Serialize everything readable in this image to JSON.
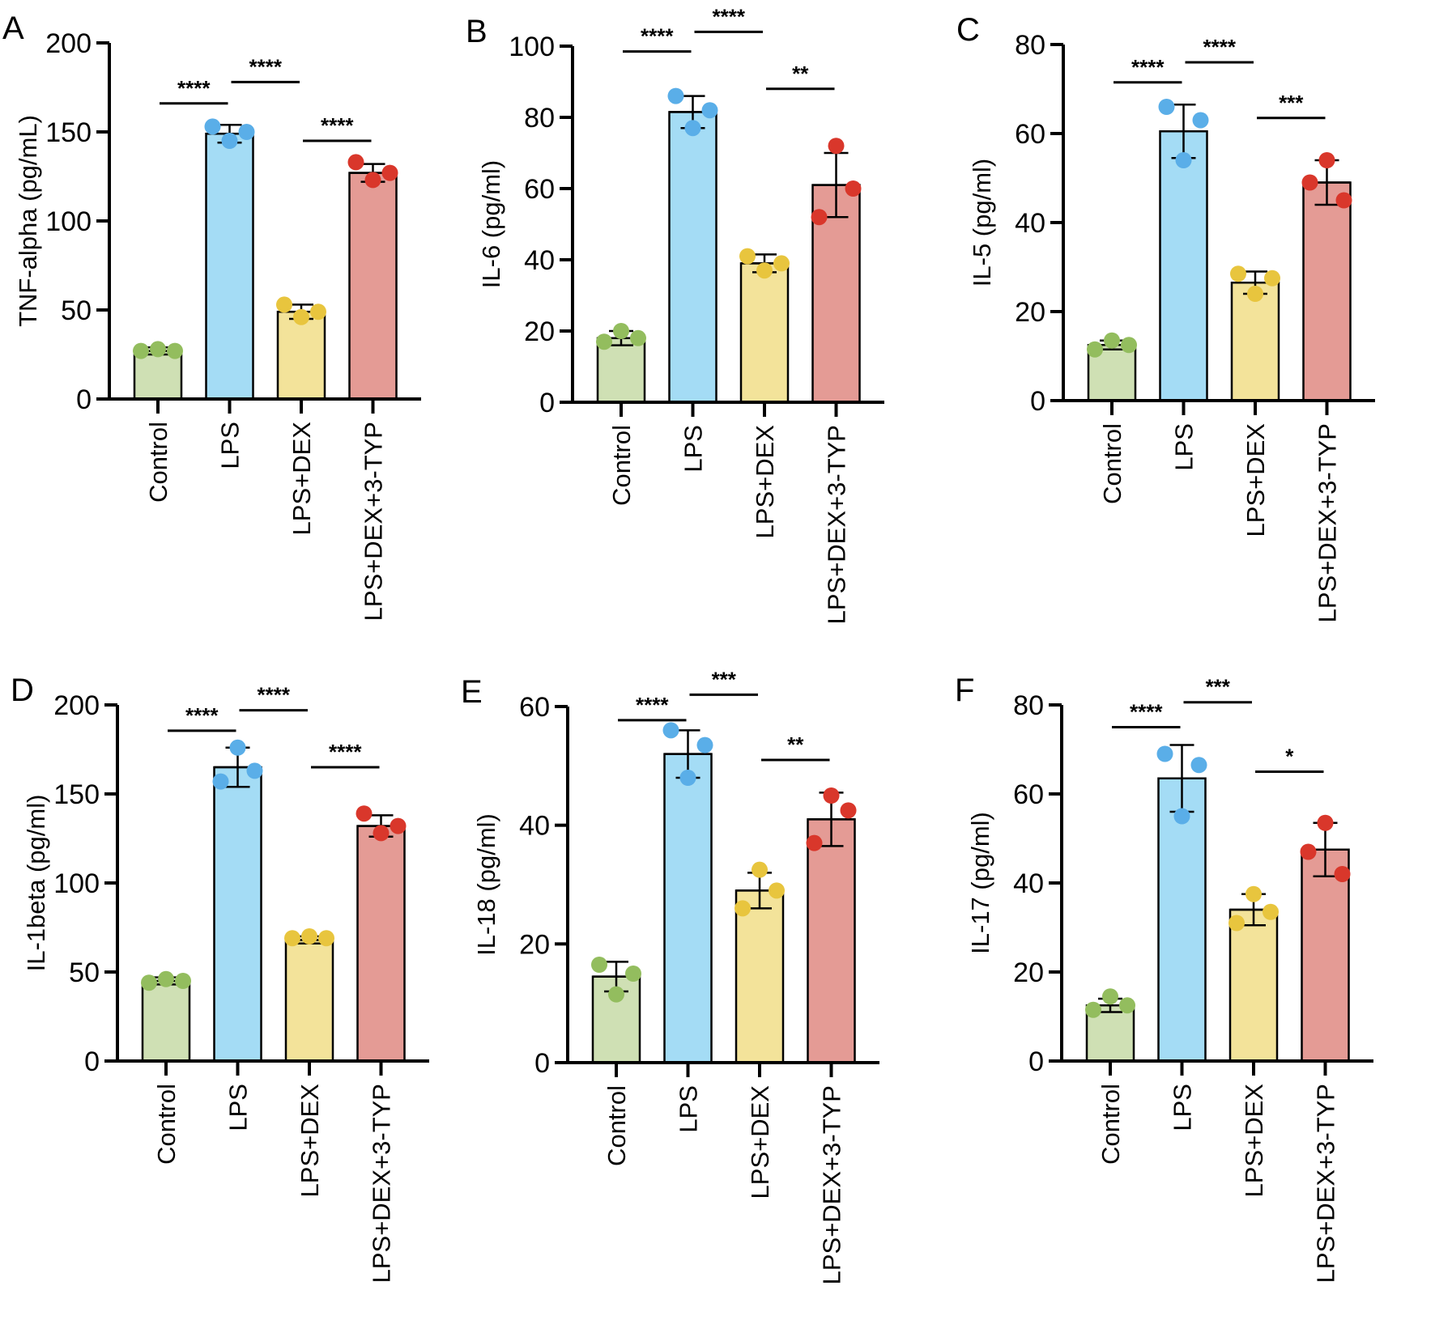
{
  "chart_data": [
    {
      "type": "bar",
      "panel": "A",
      "ylabel": "TNF-alpha (pg/mL)",
      "ylim": [
        0,
        200
      ],
      "yticks": [
        0,
        50,
        100,
        150,
        200
      ],
      "categories": [
        "Control",
        "LPS",
        "LPS+DEX",
        "LPS+DEX+3-TYP"
      ],
      "means": [
        27,
        149,
        49,
        127
      ],
      "errors": [
        2,
        5,
        4,
        5
      ],
      "points": [
        [
          27,
          28,
          27
        ],
        [
          153,
          145,
          150
        ],
        [
          53,
          46,
          49
        ],
        [
          133,
          123,
          127
        ]
      ],
      "significance": [
        {
          "from": 0,
          "to": 1,
          "label": "****",
          "y": 166
        },
        {
          "from": 1,
          "to": 2,
          "label": "****",
          "y": 178
        },
        {
          "from": 2,
          "to": 3,
          "label": "****",
          "y": 145
        }
      ]
    },
    {
      "type": "bar",
      "panel": "B",
      "ylabel": "IL-6 (pg/ml)",
      "ylim": [
        0,
        100
      ],
      "yticks": [
        0,
        20,
        40,
        60,
        80,
        100
      ],
      "categories": [
        "Control",
        "LPS",
        "LPS+DEX",
        "LPS+DEX+3-TYP"
      ],
      "means": [
        18,
        81.5,
        39,
        61
      ],
      "errors": [
        2,
        4.5,
        2.5,
        9
      ],
      "points": [
        [
          17,
          20,
          18
        ],
        [
          86,
          77,
          82
        ],
        [
          41,
          37,
          39
        ],
        [
          52,
          72,
          60
        ]
      ],
      "significance": [
        {
          "from": 0,
          "to": 1,
          "label": "****",
          "y": 98.5
        },
        {
          "from": 1,
          "to": 2,
          "label": "****",
          "y": 104
        },
        {
          "from": 2,
          "to": 3,
          "label": "**",
          "y": 88
        }
      ]
    },
    {
      "type": "bar",
      "panel": "C",
      "ylabel": "IL-5 (pg/ml)",
      "ylim": [
        0,
        80
      ],
      "yticks": [
        0,
        20,
        40,
        60,
        80
      ],
      "categories": [
        "Control",
        "LPS",
        "LPS+DEX",
        "LPS+DEX+3-TYP"
      ],
      "means": [
        12.5,
        60.5,
        26.5,
        49
      ],
      "errors": [
        1,
        6,
        2.5,
        5
      ],
      "points": [
        [
          11.5,
          13.5,
          12.5
        ],
        [
          66,
          54,
          63
        ],
        [
          28.5,
          24,
          27.5
        ],
        [
          49,
          54,
          45
        ]
      ],
      "significance": [
        {
          "from": 0,
          "to": 1,
          "label": "****",
          "y": 71.5
        },
        {
          "from": 1,
          "to": 2,
          "label": "****",
          "y": 76
        },
        {
          "from": 2,
          "to": 3,
          "label": "***",
          "y": 63.5
        }
      ]
    },
    {
      "type": "bar",
      "panel": "D",
      "ylabel": "IL-1beta (pg/ml)",
      "ylim": [
        0,
        200
      ],
      "yticks": [
        0,
        50,
        100,
        150,
        200
      ],
      "categories": [
        "Control",
        "LPS",
        "LPS+DEX",
        "LPS+DEX+3-TYP"
      ],
      "means": [
        45,
        165,
        68,
        132
      ],
      "errors": [
        2,
        11,
        2,
        6
      ],
      "points": [
        [
          44,
          46,
          45
        ],
        [
          157,
          176,
          163
        ],
        [
          69,
          70,
          69
        ],
        [
          139,
          128,
          132
        ]
      ],
      "significance": [
        {
          "from": 0,
          "to": 1,
          "label": "****",
          "y": 185.5
        },
        {
          "from": 1,
          "to": 2,
          "label": "****",
          "y": 197
        },
        {
          "from": 2,
          "to": 3,
          "label": "****",
          "y": 165
        }
      ]
    },
    {
      "type": "bar",
      "panel": "E",
      "ylabel": "IL-18 (pg/ml)",
      "ylim": [
        0,
        60
      ],
      "yticks": [
        0,
        20,
        40,
        60
      ],
      "categories": [
        "Control",
        "LPS",
        "LPS+DEX",
        "LPS+DEX+3-TYP"
      ],
      "means": [
        14.5,
        52,
        29,
        41
      ],
      "errors": [
        2.5,
        4,
        3,
        4.5
      ],
      "points": [
        [
          16.5,
          11.5,
          15
        ],
        [
          56,
          48,
          53.5
        ],
        [
          26,
          32.5,
          29
        ],
        [
          37,
          45,
          42.5
        ]
      ],
      "significance": [
        {
          "from": 0,
          "to": 1,
          "label": "****",
          "y": 57.7
        },
        {
          "from": 1,
          "to": 2,
          "label": "***",
          "y": 62
        },
        {
          "from": 2,
          "to": 3,
          "label": "**",
          "y": 51
        }
      ]
    },
    {
      "type": "bar",
      "panel": "F",
      "ylabel": "IL-17 (pg/ml)",
      "ylim": [
        0,
        80
      ],
      "yticks": [
        0,
        20,
        40,
        60,
        80
      ],
      "categories": [
        "Control",
        "LPS",
        "LPS+DEX",
        "LPS+DEX+3-TYP"
      ],
      "means": [
        12.5,
        63.5,
        34,
        47.5
      ],
      "errors": [
        1.5,
        7.5,
        3.5,
        6
      ],
      "points": [
        [
          11.5,
          14.5,
          12.5
        ],
        [
          69,
          55,
          66.5
        ],
        [
          31,
          37.5,
          33.5
        ],
        [
          47,
          53.5,
          42
        ]
      ],
      "significance": [
        {
          "from": 0,
          "to": 1,
          "label": "****",
          "y": 75
        },
        {
          "from": 1,
          "to": 2,
          "label": "***",
          "y": 80.6
        },
        {
          "from": 2,
          "to": 3,
          "label": "*",
          "y": 65
        }
      ]
    }
  ],
  "colors": {
    "bar_fill": [
      "#cfe0b4",
      "#a4dcf5",
      "#f3e39a",
      "#e49b95"
    ],
    "dot_fill": [
      "#93bd5e",
      "#5aaee8",
      "#e8c53e",
      "#d9372b"
    ]
  }
}
